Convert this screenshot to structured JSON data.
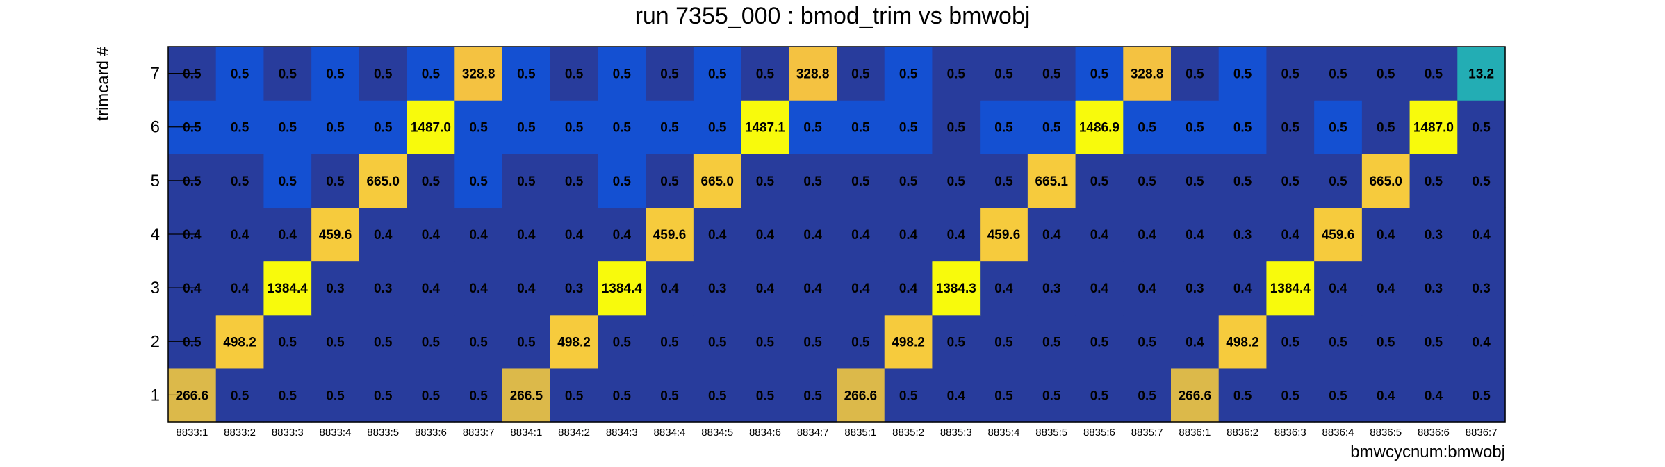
{
  "chart_data": {
    "type": "heatmap",
    "title": "run 7355_000 : bmod_trim vs bmwobj",
    "xlabel": "bmwcycnum:bmwobj",
    "ylabel": "trimcard #",
    "x_categories": [
      "8833:1",
      "8833:2",
      "8833:3",
      "8833:4",
      "8833:5",
      "8833:6",
      "8833:7",
      "8834:1",
      "8834:2",
      "8834:3",
      "8834:4",
      "8834:5",
      "8834:6",
      "8834:7",
      "8835:1",
      "8835:2",
      "8835:3",
      "8835:4",
      "8835:5",
      "8835:6",
      "8835:7",
      "8836:1",
      "8836:2",
      "8836:3",
      "8836:4",
      "8836:5",
      "8836:6",
      "8836:7"
    ],
    "y_categories": [
      "1",
      "2",
      "3",
      "4",
      "5",
      "6",
      "7"
    ],
    "values": [
      [
        "266.6",
        "0.5",
        "0.5",
        "0.5",
        "0.5",
        "0.5",
        "0.5",
        "266.5",
        "0.5",
        "0.5",
        "0.5",
        "0.5",
        "0.5",
        "0.5",
        "266.6",
        "0.5",
        "0.4",
        "0.5",
        "0.5",
        "0.5",
        "0.5",
        "266.6",
        "0.5",
        "0.5",
        "0.5",
        "0.4",
        "0.4",
        "0.5"
      ],
      [
        "0.5",
        "498.2",
        "0.5",
        "0.5",
        "0.5",
        "0.5",
        "0.5",
        "0.5",
        "498.2",
        "0.5",
        "0.5",
        "0.5",
        "0.5",
        "0.5",
        "0.5",
        "498.2",
        "0.5",
        "0.5",
        "0.5",
        "0.5",
        "0.5",
        "0.4",
        "498.2",
        "0.5",
        "0.5",
        "0.5",
        "0.5",
        "0.4"
      ],
      [
        "0.4",
        "0.4",
        "1384.4",
        "0.3",
        "0.3",
        "0.4",
        "0.4",
        "0.4",
        "0.3",
        "1384.4",
        "0.4",
        "0.3",
        "0.4",
        "0.4",
        "0.4",
        "0.4",
        "1384.3",
        "0.4",
        "0.3",
        "0.4",
        "0.4",
        "0.3",
        "0.4",
        "1384.4",
        "0.4",
        "0.4",
        "0.3",
        "0.3"
      ],
      [
        "0.4",
        "0.4",
        "0.4",
        "459.6",
        "0.4",
        "0.4",
        "0.4",
        "0.4",
        "0.4",
        "0.4",
        "459.6",
        "0.4",
        "0.4",
        "0.4",
        "0.4",
        "0.4",
        "0.4",
        "459.6",
        "0.4",
        "0.4",
        "0.4",
        "0.4",
        "0.3",
        "0.4",
        "459.6",
        "0.4",
        "0.3",
        "0.4"
      ],
      [
        "0.5",
        "0.5",
        "0.5",
        "0.5",
        "665.0",
        "0.5",
        "0.5",
        "0.5",
        "0.5",
        "0.5",
        "0.5",
        "665.0",
        "0.5",
        "0.5",
        "0.5",
        "0.5",
        "0.5",
        "0.5",
        "665.1",
        "0.5",
        "0.5",
        "0.5",
        "0.5",
        "0.5",
        "0.5",
        "665.0",
        "0.5",
        "0.5"
      ],
      [
        "0.5",
        "0.5",
        "0.5",
        "0.5",
        "0.5",
        "1487.0",
        "0.5",
        "0.5",
        "0.5",
        "0.5",
        "0.5",
        "0.5",
        "1487.1",
        "0.5",
        "0.5",
        "0.5",
        "0.5",
        "0.5",
        "0.5",
        "1486.9",
        "0.5",
        "0.5",
        "0.5",
        "0.5",
        "0.5",
        "0.5",
        "1487.0",
        "0.5"
      ],
      [
        "0.5",
        "0.5",
        "0.5",
        "0.5",
        "0.5",
        "0.5",
        "328.8",
        "0.5",
        "0.5",
        "0.5",
        "0.5",
        "0.5",
        "0.5",
        "328.8",
        "0.5",
        "0.5",
        "0.5",
        "0.5",
        "0.5",
        "0.5",
        "328.8",
        "0.5",
        "0.5",
        "0.5",
        "0.5",
        "0.5",
        "0.5",
        "13.2"
      ]
    ],
    "shade": [
      [
        "k",
        "d",
        "d",
        "d",
        "d",
        "d",
        "d",
        "k",
        "d",
        "d",
        "d",
        "d",
        "d",
        "d",
        "k",
        "d",
        "d",
        "d",
        "d",
        "d",
        "d",
        "k",
        "d",
        "d",
        "d",
        "d",
        "d",
        "d"
      ],
      [
        "d",
        "g",
        "d",
        "d",
        "d",
        "d",
        "d",
        "d",
        "g",
        "d",
        "d",
        "d",
        "d",
        "d",
        "d",
        "g",
        "d",
        "d",
        "d",
        "d",
        "d",
        "d",
        "g",
        "d",
        "d",
        "d",
        "d",
        "d"
      ],
      [
        "d",
        "d",
        "y",
        "d",
        "d",
        "d",
        "d",
        "d",
        "d",
        "y",
        "d",
        "d",
        "d",
        "d",
        "d",
        "d",
        "y",
        "d",
        "d",
        "d",
        "d",
        "d",
        "d",
        "y",
        "d",
        "d",
        "d",
        "d"
      ],
      [
        "d",
        "d",
        "d",
        "g",
        "d",
        "d",
        "d",
        "d",
        "d",
        "d",
        "g",
        "d",
        "d",
        "d",
        "d",
        "d",
        "d",
        "g",
        "d",
        "d",
        "d",
        "d",
        "d",
        "d",
        "g",
        "d",
        "d",
        "d"
      ],
      [
        "d",
        "d",
        "b",
        "d",
        "g",
        "d",
        "b",
        "d",
        "d",
        "b",
        "d",
        "g",
        "d",
        "d",
        "d",
        "d",
        "d",
        "d",
        "g",
        "d",
        "d",
        "d",
        "d",
        "d",
        "d",
        "g",
        "d",
        "d"
      ],
      [
        "b",
        "b",
        "b",
        "b",
        "b",
        "y",
        "b",
        "b",
        "b",
        "b",
        "b",
        "b",
        "y",
        "b",
        "b",
        "b",
        "d",
        "b",
        "b",
        "y",
        "b",
        "b",
        "b",
        "d",
        "b",
        "d",
        "y",
        "d"
      ],
      [
        "d",
        "b",
        "d",
        "b",
        "d",
        "b",
        "o",
        "b",
        "d",
        "b",
        "d",
        "b",
        "d",
        "o",
        "d",
        "b",
        "d",
        "d",
        "d",
        "b",
        "o",
        "d",
        "b",
        "d",
        "d",
        "d",
        "d",
        "t"
      ]
    ],
    "palette": {
      "d": "#283c9c",
      "b": "#1450d2",
      "k": "#dcb94a",
      "g": "#f6cb3d",
      "o": "#f4c241",
      "y": "#f8fa0c",
      "t": "#23adb4"
    },
    "grid": false,
    "legend": "none"
  }
}
